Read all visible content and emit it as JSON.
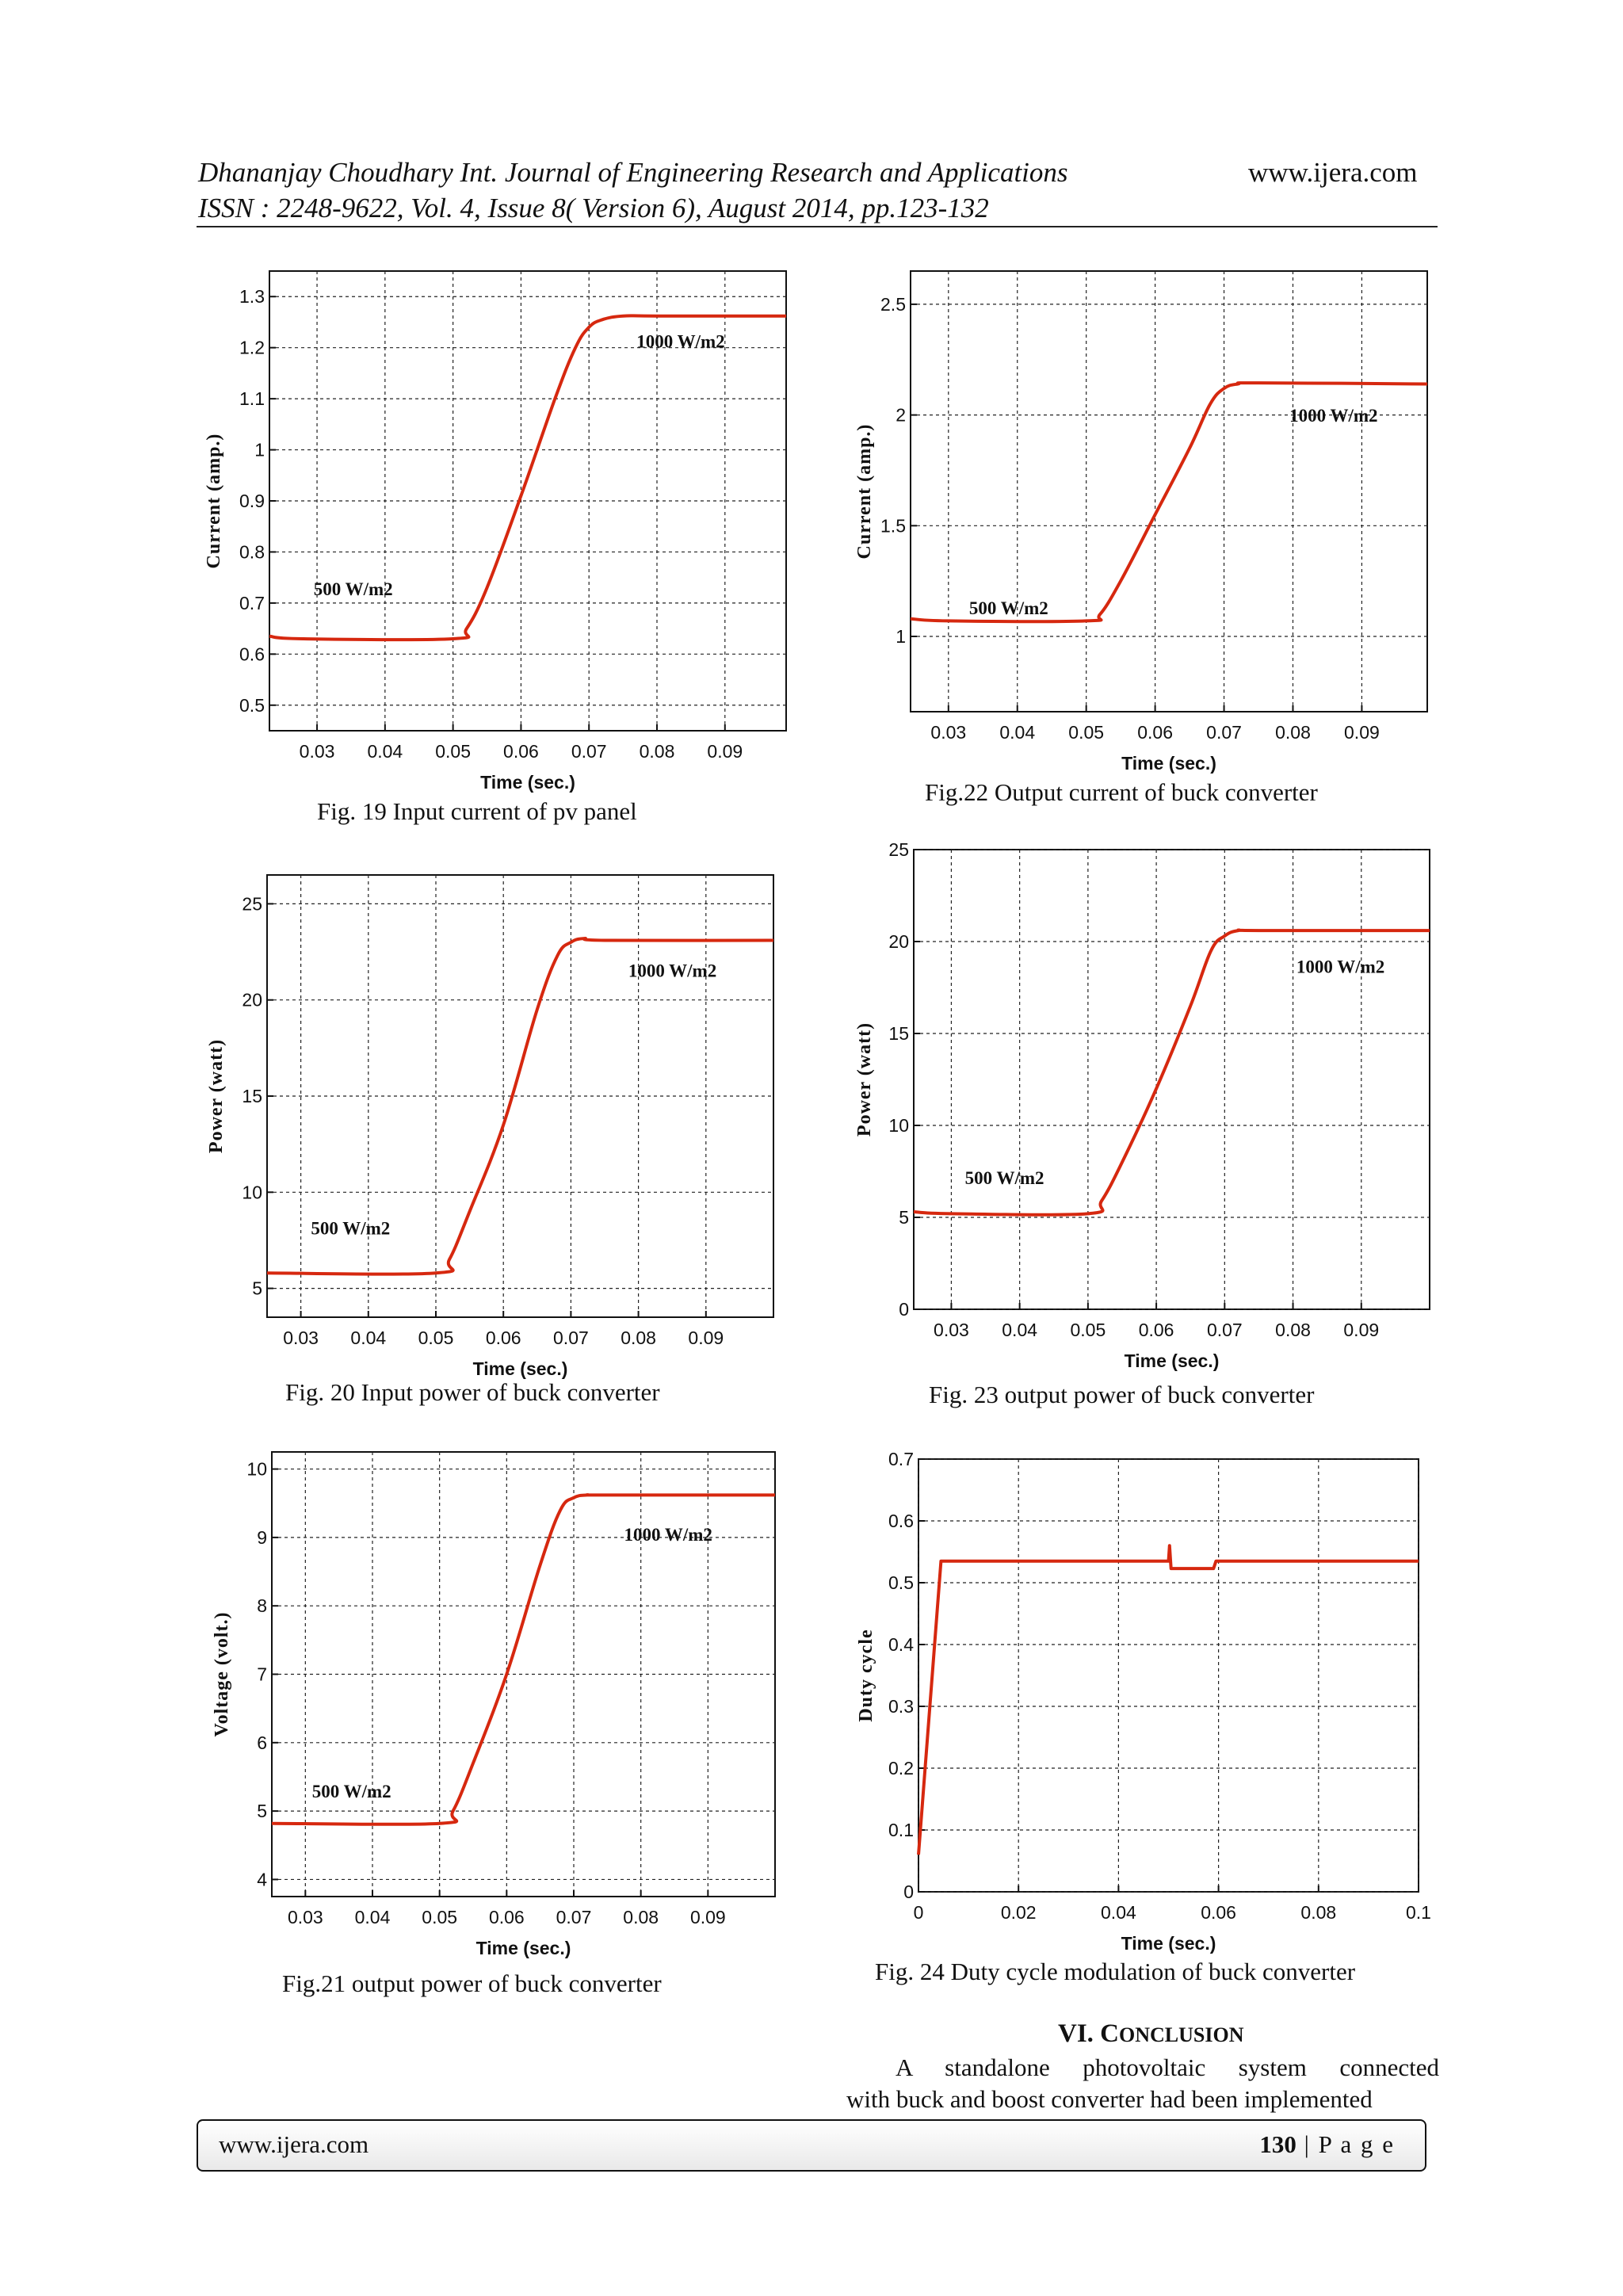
{
  "header": {
    "line1": "Dhananjay Choudhary Int. Journal of Engineering Research and Applications",
    "website": "www.ijera.com",
    "line2": "ISSN : 2248-9622, Vol. 4, Issue 8( Version 6), August 2014, pp.123-132"
  },
  "figures": [
    {
      "id": "fig19",
      "caption": "Fig. 19 Input current of pv panel"
    },
    {
      "id": "fig22",
      "caption": "Fig.22 Output current of buck converter"
    },
    {
      "id": "fig20",
      "caption": "Fig. 20 Input power of buck converter"
    },
    {
      "id": "fig23",
      "caption": "Fig. 23 output power of buck converter"
    },
    {
      "id": "fig21",
      "caption": "Fig.21 output power of buck converter"
    },
    {
      "id": "fig24",
      "caption": "Fig. 24 Duty cycle modulation of buck converter"
    }
  ],
  "chart_data": [
    {
      "id": "fig19",
      "type": "line",
      "xlabel": "Time (sec.)",
      "ylabel": "Current (amp.)",
      "xlim": [
        0.023,
        0.099
      ],
      "ylim": [
        0.45,
        1.35
      ],
      "xticks": [
        0.03,
        0.04,
        0.05,
        0.06,
        0.07,
        0.08,
        0.09
      ],
      "yticks": [
        0.5,
        0.6,
        0.7,
        0.8,
        0.9,
        1,
        1.1,
        1.2,
        1.3
      ],
      "xtick_labels": [
        "0.03",
        "0.04",
        "0.05",
        "0.06",
        "0.07",
        "0.08",
        "0.09"
      ],
      "ytick_labels": [
        "0.5",
        "0.6",
        "0.7",
        "0.8",
        "0.9",
        "1",
        "1.1",
        "1.2",
        "1.3"
      ],
      "grid": true,
      "annotations": [
        {
          "text": "500 W/m2",
          "x": 0.0295,
          "y": 0.715
        },
        {
          "text": "1000 W/m2",
          "x": 0.077,
          "y": 1.2
        }
      ],
      "series": [
        {
          "x": [
            0.023,
            0.028,
            0.05,
            0.052,
            0.055,
            0.06,
            0.065,
            0.068,
            0.07,
            0.072,
            0.075,
            0.08,
            0.099
          ],
          "y": [
            0.635,
            0.63,
            0.63,
            0.65,
            0.73,
            0.91,
            1.1,
            1.2,
            1.24,
            1.255,
            1.262,
            1.262,
            1.262
          ]
        }
      ]
    },
    {
      "id": "fig22",
      "type": "line",
      "xlabel": "Time (sec.)",
      "ylabel": "Current (amp.)",
      "xlim": [
        0.0245,
        0.0995
      ],
      "ylim": [
        0.66,
        2.65
      ],
      "xticks": [
        0.03,
        0.04,
        0.05,
        0.06,
        0.07,
        0.08,
        0.09
      ],
      "yticks": [
        1,
        1.5,
        2,
        2.5
      ],
      "xtick_labels": [
        "0.03",
        "0.04",
        "0.05",
        "0.06",
        "0.07",
        "0.08",
        "0.09"
      ],
      "ytick_labels": [
        "1",
        "1.5",
        "2",
        "2.5"
      ],
      "grid": true,
      "annotations": [
        {
          "text": "500 W/m2",
          "x": 0.033,
          "y": 1.1
        },
        {
          "text": "1000 W/m2",
          "x": 0.0795,
          "y": 1.97
        }
      ],
      "series": [
        {
          "x": [
            0.0245,
            0.03,
            0.05,
            0.052,
            0.055,
            0.06,
            0.065,
            0.068,
            0.07,
            0.072,
            0.075,
            0.0995
          ],
          "y": [
            1.08,
            1.07,
            1.07,
            1.1,
            1.25,
            1.55,
            1.85,
            2.05,
            2.12,
            2.14,
            2.145,
            2.14
          ]
        }
      ]
    },
    {
      "id": "fig20",
      "type": "line",
      "xlabel": "Time (sec.)",
      "ylabel": "Power (watt)",
      "xlim": [
        0.025,
        0.1
      ],
      "ylim": [
        3.5,
        26.5
      ],
      "xticks": [
        0.03,
        0.04,
        0.05,
        0.06,
        0.07,
        0.08,
        0.09
      ],
      "yticks": [
        5,
        10,
        15,
        20,
        25
      ],
      "xtick_labels": [
        "0.03",
        "0.04",
        "0.05",
        "0.06",
        "0.07",
        "0.08",
        "0.09"
      ],
      "ytick_labels": [
        "5",
        "10",
        "15",
        "20",
        "25"
      ],
      "grid": true,
      "annotations": [
        {
          "text": "500 W/m2",
          "x": 0.0315,
          "y": 7.8
        },
        {
          "text": "1000 W/m2",
          "x": 0.0785,
          "y": 21.2
        }
      ],
      "series": [
        {
          "x": [
            0.025,
            0.05,
            0.052,
            0.055,
            0.06,
            0.065,
            0.068,
            0.07,
            0.072,
            0.075,
            0.1
          ],
          "y": [
            5.8,
            5.8,
            6.5,
            9.0,
            13.5,
            19.5,
            22.3,
            23.0,
            23.2,
            23.1,
            23.1
          ]
        }
      ]
    },
    {
      "id": "fig23",
      "type": "line",
      "xlabel": "Time (sec.)",
      "ylabel": "Power (watt)",
      "xlim": [
        0.0245,
        0.1
      ],
      "ylim": [
        0,
        25
      ],
      "xticks": [
        0.03,
        0.04,
        0.05,
        0.06,
        0.07,
        0.08,
        0.09
      ],
      "yticks": [
        0,
        5,
        10,
        15,
        20,
        25
      ],
      "xtick_labels": [
        "0.03",
        "0.04",
        "0.05",
        "0.06",
        "0.07",
        "0.08",
        "0.09"
      ],
      "ytick_labels": [
        "0",
        "5",
        "10",
        "15",
        "20",
        "25"
      ],
      "grid": true,
      "annotations": [
        {
          "text": "500 W/m2",
          "x": 0.032,
          "y": 6.8
        },
        {
          "text": "1000 W/m2",
          "x": 0.0805,
          "y": 18.3
        }
      ],
      "series": [
        {
          "x": [
            0.0245,
            0.03,
            0.05,
            0.052,
            0.055,
            0.06,
            0.065,
            0.068,
            0.07,
            0.072,
            0.075,
            0.1
          ],
          "y": [
            5.3,
            5.2,
            5.2,
            5.9,
            8.0,
            12.0,
            16.5,
            19.5,
            20.3,
            20.6,
            20.6,
            20.6
          ]
        }
      ]
    },
    {
      "id": "fig21",
      "type": "line",
      "xlabel": "Time (sec.)",
      "ylabel": "Voltage (volt.)",
      "xlim": [
        0.025,
        0.1
      ],
      "ylim": [
        3.75,
        10.25
      ],
      "xticks": [
        0.03,
        0.04,
        0.05,
        0.06,
        0.07,
        0.08,
        0.09
      ],
      "yticks": [
        4,
        5,
        6,
        7,
        8,
        9,
        10
      ],
      "xtick_labels": [
        "0.03",
        "0.04",
        "0.05",
        "0.06",
        "0.07",
        "0.08",
        "0.09"
      ],
      "ytick_labels": [
        "4",
        "5",
        "6",
        "7",
        "8",
        "9",
        "10"
      ],
      "grid": true,
      "annotations": [
        {
          "text": "500 W/m2",
          "x": 0.031,
          "y": 5.2
        },
        {
          "text": "1000 W/m2",
          "x": 0.0775,
          "y": 8.95
        }
      ],
      "series": [
        {
          "x": [
            0.025,
            0.05,
            0.052,
            0.055,
            0.06,
            0.065,
            0.068,
            0.07,
            0.072,
            0.075,
            0.1
          ],
          "y": [
            4.82,
            4.82,
            5.0,
            5.7,
            7.0,
            8.6,
            9.4,
            9.58,
            9.62,
            9.62,
            9.62
          ]
        }
      ]
    },
    {
      "id": "fig24",
      "type": "line",
      "xlabel": "Time (sec.)",
      "ylabel": "Duty cycle",
      "xlim": [
        0,
        0.1
      ],
      "ylim": [
        0,
        0.7
      ],
      "xticks": [
        0,
        0.02,
        0.04,
        0.06,
        0.08,
        0.1
      ],
      "yticks": [
        0,
        0.1,
        0.2,
        0.3,
        0.4,
        0.5,
        0.6,
        0.7
      ],
      "xtick_labels": [
        "0",
        "0.02",
        "0.04",
        "0.06",
        "0.08",
        "0.1"
      ],
      "ytick_labels": [
        "0",
        "0.1",
        "0.2",
        "0.3",
        "0.4",
        "0.5",
        "0.6",
        "0.7"
      ],
      "grid": true,
      "annotations": [],
      "series": [
        {
          "x": [
            0,
            0.0045,
            0.05,
            0.0502,
            0.0505,
            0.0508,
            0.059,
            0.0595,
            0.1
          ],
          "y": [
            0.06,
            0.535,
            0.535,
            0.56,
            0.523,
            0.523,
            0.523,
            0.535,
            0.535
          ]
        }
      ]
    }
  ],
  "section": {
    "title_prefix": "VI. C",
    "title_rest": "ONCLUSION",
    "body_line1": "A standalone photovoltaic system connected",
    "body_line2": "with buck and boost converter had been implemented"
  },
  "footer": {
    "website": "www.ijera.com",
    "page_number": "130",
    "page_label": " | P a g e"
  }
}
